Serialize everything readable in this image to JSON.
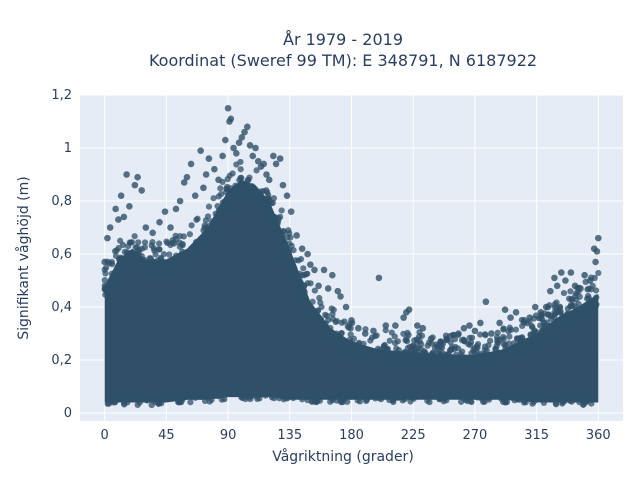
{
  "chart_data": {
    "type": "scatter",
    "title_line1": "År 1979 - 2019",
    "title_line2": "Koordinat (Sweref 99 TM): E 348791, N 6187922",
    "xlabel": "Vågriktning (grader)",
    "ylabel": "Signifikant våghöjd (m)",
    "xlim": [
      -18,
      378
    ],
    "ylim": [
      -0.03,
      1.2
    ],
    "xticks": [
      0,
      45,
      90,
      135,
      180,
      225,
      270,
      315,
      360
    ],
    "xtick_labels": [
      "0",
      "45",
      "90",
      "135",
      "180",
      "225",
      "270",
      "315",
      "360"
    ],
    "yticks": [
      0,
      0.2,
      0.4,
      0.6,
      0.8,
      1,
      1.2
    ],
    "ytick_labels": [
      "0",
      "0,2",
      "0,4",
      "0,6",
      "0,8",
      "1",
      "1,2"
    ],
    "grid": true,
    "background_color": "#e5ecf6",
    "marker_color": "#2f5068",
    "series": [
      {
        "envelope": {
          "x": [
            0,
            10,
            20,
            30,
            45,
            60,
            75,
            90,
            100,
            110,
            120,
            135,
            150,
            165,
            180,
            200,
            225,
            250,
            270,
            290,
            315,
            330,
            345,
            360
          ],
          "y_max": [
            0.48,
            0.58,
            0.62,
            0.58,
            0.58,
            0.62,
            0.7,
            0.84,
            0.88,
            0.86,
            0.8,
            0.62,
            0.42,
            0.32,
            0.27,
            0.24,
            0.23,
            0.22,
            0.22,
            0.24,
            0.3,
            0.36,
            0.4,
            0.45
          ],
          "y_min": [
            0.04,
            0.04,
            0.04,
            0.04,
            0.04,
            0.05,
            0.05,
            0.06,
            0.06,
            0.06,
            0.06,
            0.05,
            0.05,
            0.05,
            0.05,
            0.05,
            0.05,
            0.05,
            0.05,
            0.05,
            0.04,
            0.04,
            0.04,
            0.04
          ]
        },
        "outliers": [
          [
            0,
            0.57
          ],
          [
            2,
            0.66
          ],
          [
            4,
            0.7
          ],
          [
            8,
            0.77
          ],
          [
            10,
            0.73
          ],
          [
            12,
            0.82
          ],
          [
            14,
            0.74
          ],
          [
            16,
            0.9
          ],
          [
            18,
            0.78
          ],
          [
            22,
            0.86
          ],
          [
            24,
            0.89
          ],
          [
            27,
            0.84
          ],
          [
            30,
            0.7
          ],
          [
            35,
            0.68
          ],
          [
            40,
            0.72
          ],
          [
            44,
            0.76
          ],
          [
            48,
            0.7
          ],
          [
            52,
            0.77
          ],
          [
            55,
            0.8
          ],
          [
            58,
            0.87
          ],
          [
            60,
            0.89
          ],
          [
            63,
            0.94
          ],
          [
            66,
            0.82
          ],
          [
            70,
            0.99
          ],
          [
            72,
            0.85
          ],
          [
            74,
            0.9
          ],
          [
            76,
            0.96
          ],
          [
            80,
            0.92
          ],
          [
            83,
            0.88
          ],
          [
            86,
            0.97
          ],
          [
            88,
            1.03
          ],
          [
            90,
            1.15
          ],
          [
            91,
            1.1
          ],
          [
            92,
            1.11
          ],
          [
            94,
            1.0
          ],
          [
            96,
            0.98
          ],
          [
            98,
            1.02
          ],
          [
            100,
            1.04
          ],
          [
            102,
            1.06
          ],
          [
            104,
            1.08
          ],
          [
            106,
            1.01
          ],
          [
            108,
            0.97
          ],
          [
            110,
            1.0
          ],
          [
            112,
            0.95
          ],
          [
            114,
            0.93
          ],
          [
            116,
            0.94
          ],
          [
            118,
            0.9
          ],
          [
            120,
            0.88
          ],
          [
            123,
            0.97
          ],
          [
            125,
            0.94
          ],
          [
            128,
            0.96
          ],
          [
            130,
            0.86
          ],
          [
            133,
            0.82
          ],
          [
            136,
            0.76
          ],
          [
            140,
            0.67
          ],
          [
            144,
            0.62
          ],
          [
            148,
            0.6
          ],
          [
            150,
            0.56
          ],
          [
            153,
            0.54
          ],
          [
            156,
            0.48
          ],
          [
            160,
            0.54
          ],
          [
            163,
            0.47
          ],
          [
            166,
            0.52
          ],
          [
            170,
            0.46
          ],
          [
            172,
            0.44
          ],
          [
            176,
            0.4
          ],
          [
            180,
            0.35
          ],
          [
            185,
            0.32
          ],
          [
            190,
            0.3
          ],
          [
            196,
            0.31
          ],
          [
            200,
            0.51
          ],
          [
            205,
            0.33
          ],
          [
            212,
            0.33
          ],
          [
            218,
            0.36
          ],
          [
            220,
            0.38
          ],
          [
            222,
            0.39
          ],
          [
            228,
            0.33
          ],
          [
            232,
            0.32
          ],
          [
            238,
            0.28
          ],
          [
            245,
            0.27
          ],
          [
            252,
            0.29
          ],
          [
            258,
            0.3
          ],
          [
            262,
            0.32
          ],
          [
            266,
            0.33
          ],
          [
            270,
            0.31
          ],
          [
            274,
            0.34
          ],
          [
            278,
            0.42
          ],
          [
            282,
            0.3
          ],
          [
            288,
            0.34
          ],
          [
            292,
            0.39
          ],
          [
            296,
            0.36
          ],
          [
            300,
            0.38
          ],
          [
            306,
            0.35
          ],
          [
            310,
            0.36
          ],
          [
            314,
            0.4
          ],
          [
            318,
            0.38
          ],
          [
            322,
            0.4
          ],
          [
            325,
            0.46
          ],
          [
            328,
            0.51
          ],
          [
            330,
            0.48
          ],
          [
            333,
            0.53
          ],
          [
            336,
            0.5
          ],
          [
            340,
            0.53
          ],
          [
            343,
            0.48
          ],
          [
            347,
            0.47
          ],
          [
            350,
            0.52
          ],
          [
            354,
            0.5
          ],
          [
            357,
            0.62
          ],
          [
            358,
            0.57
          ],
          [
            359,
            0.61
          ],
          [
            360,
            0.66
          ]
        ]
      }
    ]
  }
}
